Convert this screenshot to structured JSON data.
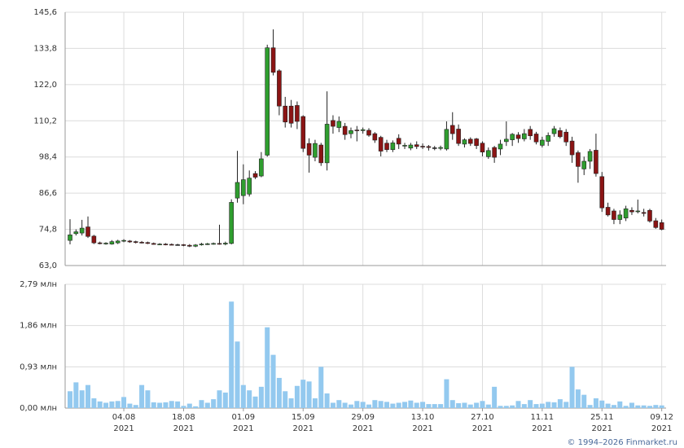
{
  "chart_data": [
    {
      "type": "candlestick",
      "categories": [
        null,
        null,
        null,
        null,
        null,
        null,
        null,
        null,
        null,
        [
          "04.08",
          "2021"
        ],
        null,
        null,
        null,
        null,
        null,
        null,
        null,
        null,
        null,
        [
          "18.08",
          "2021"
        ],
        null,
        null,
        null,
        null,
        null,
        null,
        null,
        null,
        null,
        [
          "01.09",
          "2021"
        ],
        null,
        null,
        null,
        null,
        null,
        null,
        null,
        null,
        null,
        [
          "15.09",
          "2021"
        ],
        null,
        null,
        null,
        null,
        null,
        null,
        null,
        null,
        null,
        [
          "29.09",
          "2021"
        ],
        null,
        null,
        null,
        null,
        null,
        null,
        null,
        null,
        null,
        [
          "13.10",
          "2021"
        ],
        null,
        null,
        null,
        null,
        null,
        null,
        null,
        null,
        null,
        [
          "27.10",
          "2021"
        ],
        null,
        null,
        null,
        null,
        null,
        null,
        null,
        null,
        null,
        [
          "11.11",
          "2021"
        ],
        null,
        null,
        null,
        null,
        null,
        null,
        null,
        null,
        null,
        [
          "25.11",
          "2021"
        ],
        null,
        null,
        null,
        null,
        null,
        null,
        null,
        null,
        null,
        [
          "09.12",
          "2021"
        ]
      ],
      "open": [
        71.2,
        73.4,
        73.6,
        75.6,
        72.6,
        70.4,
        70.2,
        70.0,
        70.4,
        71.0,
        71.0,
        70.8,
        70.6,
        70.5,
        70.2,
        69.9,
        70.0,
        69.9,
        69.8,
        69.8,
        69.6,
        69.3,
        69.8,
        70.0,
        70.1,
        70.2,
        70.0,
        70.2,
        85.0,
        85.8,
        86.3,
        93.0,
        92.2,
        99.0,
        134.0,
        126.5,
        115.0,
        115.0,
        115.2,
        111.6,
        102.8,
        98.3,
        102.3,
        96.5,
        110.3,
        108.0,
        108.4,
        106.0,
        107.2,
        107.0,
        107.1,
        106.0,
        104.8,
        102.9,
        100.8,
        104.5,
        102.0,
        101.3,
        102.4,
        101.9,
        101.8,
        101.4,
        101.2,
        101.0,
        108.7,
        107.5,
        102.6,
        104.2,
        104.3,
        102.9,
        98.5,
        101.5,
        101.0,
        103.4,
        104.0,
        105.6,
        104.3,
        107.4,
        105.9,
        102.2,
        103.5,
        106.0,
        107.0,
        106.5,
        103.6,
        99.8,
        94.5,
        97.0,
        100.6,
        92.0,
        82.0,
        80.8,
        78.0,
        78.5,
        81.0,
        80.6,
        80.3,
        81.0,
        77.6,
        77.0
      ],
      "high": [
        78.1,
        74.8,
        77.9,
        79.0,
        73.0,
        70.8,
        70.6,
        71.3,
        71.4,
        71.6,
        71.3,
        71.1,
        71.0,
        70.8,
        70.5,
        70.3,
        70.3,
        70.2,
        70.1,
        70.0,
        70.0,
        70.0,
        70.4,
        70.4,
        70.5,
        76.3,
        70.8,
        84.6,
        100.4,
        96.0,
        94.0,
        93.8,
        100.0,
        135.0,
        140.0,
        127.0,
        118.0,
        117.0,
        116.5,
        112.0,
        104.5,
        104.0,
        103.0,
        119.8,
        112.0,
        111.6,
        109.5,
        108.0,
        108.5,
        108.0,
        107.8,
        106.5,
        105.3,
        104.0,
        103.8,
        105.8,
        103.0,
        103.0,
        103.5,
        102.8,
        102.3,
        102.0,
        102.1,
        110.0,
        113.0,
        109.0,
        104.5,
        104.8,
        104.6,
        103.5,
        101.5,
        102.0,
        104.0,
        110.0,
        106.2,
        106.5,
        107.5,
        108.5,
        106.6,
        105.0,
        106.4,
        108.5,
        108.0,
        107.5,
        105.0,
        100.5,
        98.5,
        101.0,
        106.0,
        93.5,
        83.5,
        81.5,
        81.0,
        82.5,
        82.0,
        84.5,
        81.5,
        81.5,
        78.5,
        78.0
      ],
      "low": [
        69.9,
        72.8,
        72.8,
        72.0,
        70.0,
        69.9,
        69.8,
        69.8,
        70.0,
        70.6,
        70.4,
        70.2,
        70.2,
        70.0,
        69.8,
        69.7,
        69.6,
        69.6,
        69.5,
        69.3,
        69.0,
        69.0,
        69.5,
        69.7,
        69.8,
        69.8,
        69.6,
        69.9,
        83.5,
        83.0,
        85.5,
        91.2,
        91.8,
        98.5,
        125.0,
        112.0,
        108.0,
        108.0,
        107.5,
        100.0,
        93.3,
        97.0,
        95.5,
        94.0,
        106.0,
        106.5,
        104.0,
        104.5,
        103.5,
        106.0,
        105.0,
        103.0,
        98.6,
        100.0,
        100.0,
        101.0,
        101.0,
        100.6,
        101.0,
        101.0,
        100.5,
        100.6,
        100.6,
        100.5,
        104.0,
        102.0,
        101.5,
        102.0,
        101.0,
        98.6,
        97.8,
        96.5,
        99.0,
        102.0,
        102.0,
        103.0,
        103.5,
        104.0,
        102.5,
        101.5,
        102.0,
        105.0,
        104.5,
        102.0,
        96.5,
        90.0,
        92.5,
        94.5,
        92.0,
        80.5,
        79.0,
        76.5,
        76.5,
        77.5,
        79.5,
        80.0,
        79.0,
        77.0,
        75.0,
        74.5
      ],
      "close": [
        73.0,
        74.0,
        75.2,
        72.5,
        70.4,
        70.2,
        70.3,
        70.8,
        71.0,
        71.2,
        70.7,
        70.6,
        70.5,
        70.2,
        69.9,
        70.0,
        69.9,
        69.8,
        69.8,
        69.6,
        69.3,
        69.7,
        70.0,
        70.1,
        70.2,
        70.0,
        70.3,
        83.6,
        90.1,
        91.0,
        91.5,
        91.8,
        97.8,
        134.0,
        126.0,
        115.0,
        109.8,
        109.4,
        110.0,
        101.2,
        99.0,
        102.8,
        96.5,
        109.1,
        108.4,
        110.0,
        105.7,
        107.0,
        107.0,
        107.3,
        105.5,
        103.9,
        100.3,
        100.8,
        103.0,
        102.6,
        102.2,
        102.3,
        101.8,
        101.8,
        101.5,
        101.4,
        101.5,
        107.4,
        106.0,
        102.8,
        104.0,
        102.8,
        102.1,
        100.0,
        100.5,
        98.3,
        102.6,
        104.2,
        105.8,
        104.4,
        106.0,
        105.3,
        103.3,
        103.9,
        105.4,
        107.6,
        105.0,
        103.3,
        99.1,
        95.3,
        97.0,
        100.2,
        93.0,
        81.8,
        79.5,
        78.0,
        79.5,
        81.5,
        80.5,
        80.8,
        80.0,
        77.5,
        75.4,
        74.8
      ],
      "up_color": "#2f9e2f",
      "down_color": "#8b1414",
      "ylim": [
        63.0,
        145.6
      ],
      "yticks": [
        {
          "value": 63.0,
          "label": "63,0"
        },
        {
          "value": 74.8,
          "label": "74,8"
        },
        {
          "value": 86.6,
          "label": "86,6"
        },
        {
          "value": 98.4,
          "label": "98,4"
        },
        {
          "value": 110.2,
          "label": "110,2"
        },
        {
          "value": 122.0,
          "label": "122,0"
        },
        {
          "value": 133.8,
          "label": "133,8"
        },
        {
          "value": 145.6,
          "label": "145,6"
        }
      ],
      "grid": true
    },
    {
      "type": "bar",
      "values": [
        0.38,
        0.58,
        0.4,
        0.52,
        0.22,
        0.15,
        0.12,
        0.15,
        0.16,
        0.25,
        0.1,
        0.07,
        0.52,
        0.4,
        0.13,
        0.12,
        0.13,
        0.16,
        0.15,
        0.05,
        0.1,
        0.04,
        0.18,
        0.12,
        0.2,
        0.4,
        0.35,
        2.4,
        1.5,
        0.52,
        0.4,
        0.26,
        0.48,
        1.82,
        1.2,
        0.68,
        0.38,
        0.22,
        0.5,
        0.64,
        0.6,
        0.22,
        0.93,
        0.33,
        0.12,
        0.18,
        0.12,
        0.08,
        0.16,
        0.14,
        0.08,
        0.18,
        0.16,
        0.14,
        0.1,
        0.12,
        0.14,
        0.17,
        0.12,
        0.14,
        0.09,
        0.09,
        0.09,
        0.65,
        0.18,
        0.11,
        0.12,
        0.08,
        0.12,
        0.16,
        0.08,
        0.48,
        0.05,
        0.05,
        0.06,
        0.16,
        0.09,
        0.18,
        0.09,
        0.1,
        0.14,
        0.13,
        0.2,
        0.14,
        0.93,
        0.42,
        0.3,
        0.07,
        0.22,
        0.17,
        0.1,
        0.07,
        0.15,
        0.05,
        0.12,
        0.06,
        0.06,
        0.05,
        0.07,
        0.06
      ],
      "color": "#93c9ef",
      "ylim": [
        0,
        2.79
      ],
      "yticks": [
        {
          "value": 0,
          "label": "0,00 млн"
        },
        {
          "value": 0.93,
          "label": "0,93 млн"
        },
        {
          "value": 1.86,
          "label": "1,86 млн"
        },
        {
          "value": 2.79,
          "label": "2,79 млн"
        }
      ],
      "grid": true
    }
  ],
  "footer": "© 1994–2026 Finmarket.ru"
}
